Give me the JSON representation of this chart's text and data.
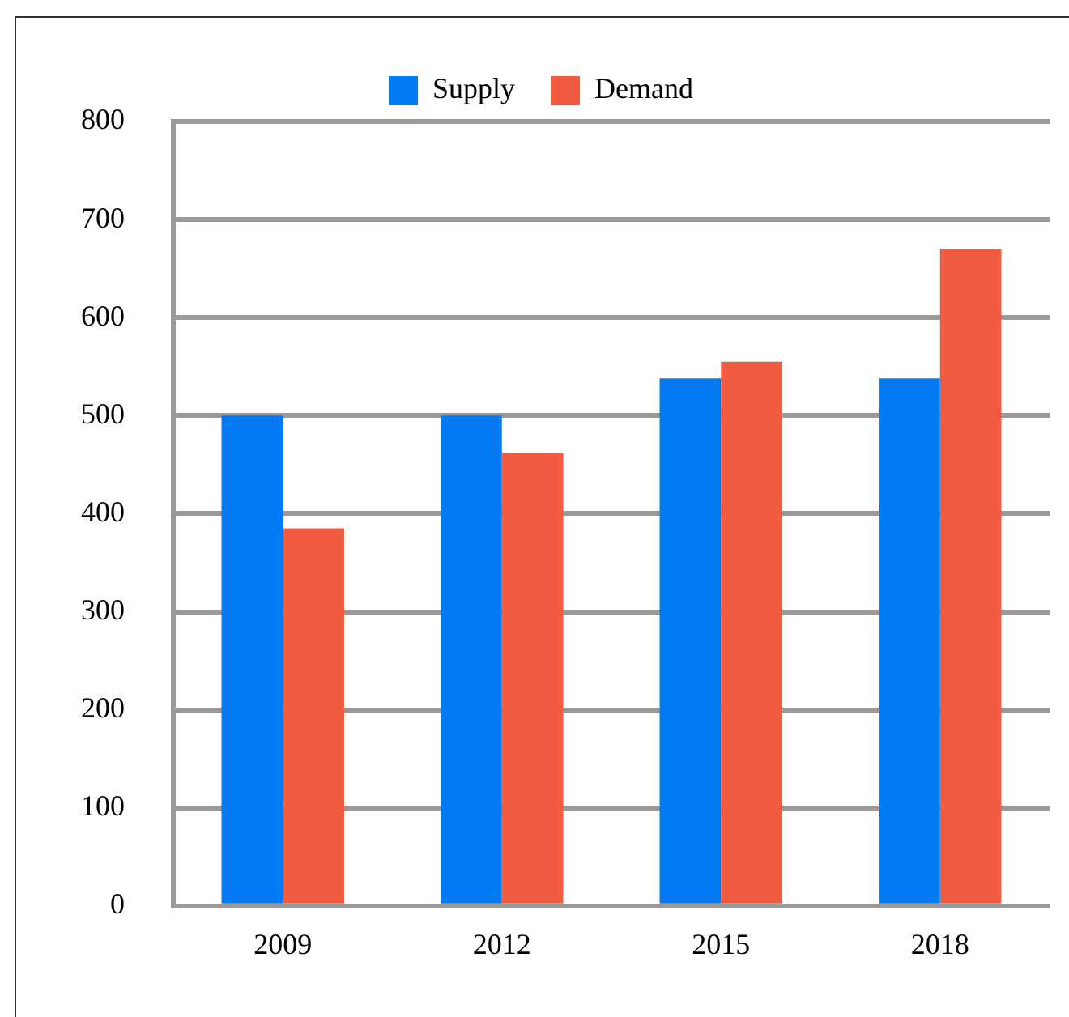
{
  "chart_data": {
    "type": "bar",
    "categories": [
      "2009",
      "2012",
      "2015",
      "2018"
    ],
    "series": [
      {
        "name": "Supply",
        "color": "#027bf5",
        "values": [
          500,
          500,
          538,
          538
        ]
      },
      {
        "name": "Demand",
        "color": "#f05c40",
        "values": [
          385,
          462,
          555,
          670
        ]
      }
    ],
    "ylim": [
      0,
      800
    ],
    "yticks": [
      0,
      100,
      200,
      300,
      400,
      500,
      600,
      700,
      800
    ],
    "grid": "y",
    "legend": "top"
  }
}
